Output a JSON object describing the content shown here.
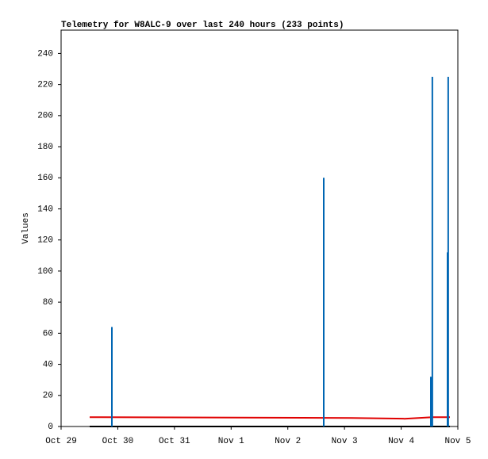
{
  "chart_data": {
    "type": "line",
    "title": "Telemetry for W8ALC-9 over last 240 hours (233 points)",
    "y_label": "Values",
    "xlim": [
      0,
      7
    ],
    "ylim": [
      0,
      255
    ],
    "xticks": [
      {
        "value": 0,
        "label": "Oct 29"
      },
      {
        "value": 1,
        "label": "Oct 30"
      },
      {
        "value": 2,
        "label": "Oct 31"
      },
      {
        "value": 3,
        "label": "Nov 1"
      },
      {
        "value": 4,
        "label": "Nov 2"
      },
      {
        "value": 5,
        "label": "Nov 3"
      },
      {
        "value": 6,
        "label": "Nov 4"
      },
      {
        "value": 7,
        "label": "Nov 5"
      }
    ],
    "yticks": [
      0,
      20,
      40,
      60,
      80,
      100,
      120,
      140,
      160,
      180,
      200,
      220,
      240
    ],
    "series": [
      {
        "color": "#000000",
        "mode": "line",
        "x": [
          0.504,
          6.86
        ],
        "values": [
          0,
          0
        ]
      },
      {
        "color": "#e00000",
        "mode": "line",
        "x": [
          0.504,
          5.12,
          6.06,
          6.55,
          6.86
        ],
        "values": [
          6,
          5.5,
          5,
          6,
          6
        ]
      },
      {
        "color": "#0066b3",
        "mode": "impulse",
        "x": [
          0.896,
          4.634,
          6.524,
          6.55,
          6.818,
          6.83
        ],
        "values": [
          64,
          160,
          32,
          225,
          112,
          225
        ]
      }
    ]
  }
}
